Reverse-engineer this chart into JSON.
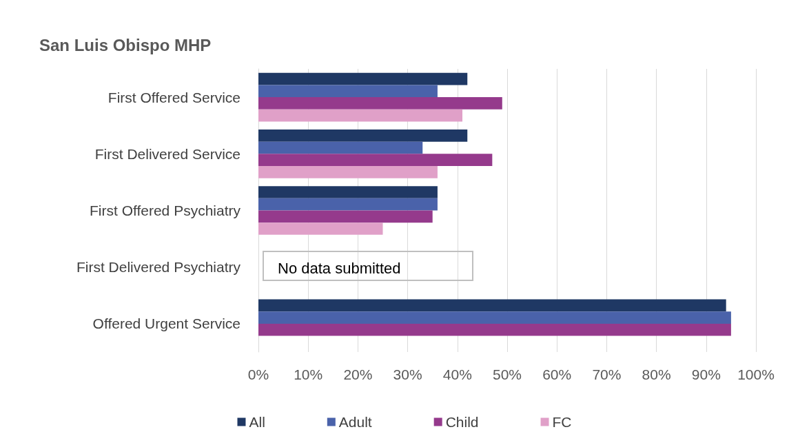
{
  "chart_data": {
    "type": "bar",
    "orientation": "horizontal",
    "title": "San Luis Obispo MHP",
    "categories": [
      "First Offered Service",
      "First Delivered Service",
      "First Offered Psychiatry",
      "First Delivered Psychiatry",
      "Offered Urgent Service"
    ],
    "series": [
      {
        "name": "All",
        "color": "#1f3864",
        "values": [
          42,
          42,
          36,
          null,
          94
        ]
      },
      {
        "name": "Adult",
        "color": "#4a62aa",
        "values": [
          36,
          33,
          36,
          null,
          95
        ]
      },
      {
        "name": "Child",
        "color": "#953a8c",
        "values": [
          49,
          47,
          35,
          null,
          95
        ]
      },
      {
        "name": "FC",
        "color": "#e0a0c8",
        "values": [
          41,
          36,
          25,
          null,
          null
        ]
      }
    ],
    "xlim": [
      0,
      100
    ],
    "xticks": [
      {
        "value": 0,
        "label": "0%"
      },
      {
        "value": 10,
        "label": "10%"
      },
      {
        "value": 20,
        "label": "20%"
      },
      {
        "value": 30,
        "label": "30%"
      },
      {
        "value": 40,
        "label": "40%"
      },
      {
        "value": 50,
        "label": "50%"
      },
      {
        "value": 60,
        "label": "60%"
      },
      {
        "value": 70,
        "label": "70%"
      },
      {
        "value": 80,
        "label": "80%"
      },
      {
        "value": 90,
        "label": "90%"
      },
      {
        "value": 100,
        "label": "100%"
      }
    ],
    "annotations": [
      "No data submitted"
    ],
    "grid": "x",
    "legend": "bottom"
  }
}
